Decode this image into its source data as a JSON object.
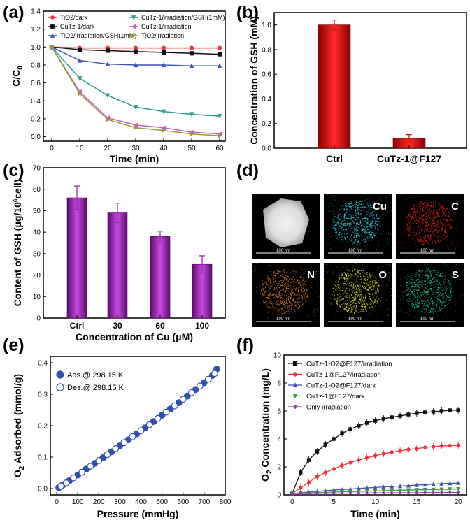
{
  "chart_data": [
    {
      "panel": "(a)",
      "type": "line",
      "xlabel": "Time (min)",
      "ylabel": "C/C0",
      "xlim": [
        -3,
        62
      ],
      "ylim": [
        -0.05,
        1.4
      ],
      "xticks": [
        0,
        10,
        20,
        30,
        40,
        50,
        60
      ],
      "yticks": [
        0.0,
        0.2,
        0.4,
        0.6,
        0.8,
        1.0,
        1.2,
        1.4
      ],
      "ytick_labels": [
        "0.0",
        "0.2",
        "0.4",
        "0.6",
        "0.8",
        "1.0",
        "1.2",
        "1.4"
      ],
      "x": [
        0,
        10,
        20,
        30,
        40,
        50,
        60
      ],
      "series": [
        {
          "name": "TiO2/dark",
          "color": "#e8363a",
          "marker": "circle",
          "values": [
            1.0,
            0.99,
            0.99,
            0.99,
            0.99,
            0.99,
            0.99
          ]
        },
        {
          "name": "CuTz-1/dark",
          "color": "#111111",
          "marker": "square",
          "values": [
            1.0,
            0.97,
            0.96,
            0.95,
            0.94,
            0.93,
            0.92
          ]
        },
        {
          "name": "TiO2/irradiation/GSH(1mM)",
          "color": "#3f51b5",
          "marker": "triangle-up",
          "values": [
            1.0,
            0.85,
            0.81,
            0.8,
            0.8,
            0.79,
            0.79
          ]
        },
        {
          "name": "CuTz-1/irradiation/GSH(1mM)",
          "color": "#2a9d8f",
          "marker": "triangle-down",
          "values": [
            1.0,
            0.65,
            0.46,
            0.33,
            0.28,
            0.25,
            0.23
          ]
        },
        {
          "name": "CuTz-1/irradiation",
          "color": "#c060c0",
          "marker": "triangle-left",
          "values": [
            1.0,
            0.5,
            0.21,
            0.13,
            0.1,
            0.05,
            0.03
          ]
        },
        {
          "name": "TiO2/irradiation",
          "color": "#999933",
          "marker": "triangle-right",
          "values": [
            1.0,
            0.48,
            0.19,
            0.1,
            0.07,
            0.03,
            0.01
          ]
        }
      ]
    },
    {
      "panel": "(b)",
      "type": "bar",
      "ylabel": "Concentration of GSH (mM)",
      "categories": [
        "Ctrl",
        "CuTz-1@F127"
      ],
      "values": [
        1.0,
        0.08
      ],
      "errors": [
        0.04,
        0.03
      ],
      "color": "#e01010",
      "ylim": [
        0,
        1.1
      ],
      "yticks": [
        0.0,
        0.2,
        0.4,
        0.6,
        0.8,
        1.0
      ],
      "ytick_labels": [
        "0.0",
        "0.2",
        "0.4",
        "0.6",
        "0.8",
        "1.0"
      ]
    },
    {
      "panel": "(c)",
      "type": "bar",
      "xlabel": "Concentration of Cu (μM)",
      "ylabel": "Content of GSH (μg/10^6 cell)",
      "ylabel_parts": [
        "Content of GSH (",
        "μ",
        "g/10",
        "6",
        "cell)"
      ],
      "categories": [
        "Ctrl",
        "30",
        "60",
        "100"
      ],
      "values": [
        56,
        49,
        38,
        25
      ],
      "errors": [
        5.5,
        4.5,
        2.5,
        4
      ],
      "color": "#a02ab0",
      "ylim": [
        0,
        70
      ],
      "yticks": [
        0,
        10,
        20,
        30,
        40,
        50,
        60,
        70
      ],
      "ytick_labels": [
        "0",
        "10",
        "20",
        "30",
        "40",
        "50",
        "60",
        "70"
      ]
    },
    {
      "panel": "(e)",
      "type": "scatter",
      "xlabel": "Pressure (mmHg)",
      "ylabel": "O2 Adsorbed (mmol/g)",
      "xlim": [
        -30,
        800
      ],
      "ylim": [
        -0.02,
        0.42
      ],
      "xticks": [
        0,
        100,
        200,
        300,
        400,
        500,
        600,
        700,
        800
      ],
      "yticks": [
        0.0,
        0.1,
        0.2,
        0.3,
        0.4
      ],
      "ytick_labels": [
        "0.0",
        "0.1",
        "0.2",
        "0.3",
        "0.4"
      ],
      "series": [
        {
          "name": "Ads.@ 298.15 K",
          "filled": true,
          "color": "#3050b0",
          "x": [
            10,
            30,
            60,
            100,
            140,
            180,
            220,
            260,
            300,
            340,
            380,
            420,
            460,
            500,
            540,
            580,
            620,
            660,
            700,
            740,
            760
          ],
          "y": [
            0.003,
            0.012,
            0.025,
            0.043,
            0.062,
            0.08,
            0.098,
            0.117,
            0.136,
            0.155,
            0.174,
            0.193,
            0.213,
            0.233,
            0.253,
            0.273,
            0.294,
            0.315,
            0.337,
            0.36,
            0.38
          ]
        },
        {
          "name": "Des.@ 298.15 K",
          "filled": false,
          "color": "#3050b0",
          "x": [
            20,
            45,
            80,
            120,
            160,
            200,
            240,
            280,
            320,
            360,
            400,
            440,
            480,
            520,
            560,
            600,
            640,
            680,
            720,
            750
          ],
          "y": [
            0.008,
            0.018,
            0.034,
            0.052,
            0.071,
            0.089,
            0.108,
            0.127,
            0.146,
            0.165,
            0.184,
            0.203,
            0.223,
            0.243,
            0.263,
            0.284,
            0.305,
            0.326,
            0.348,
            0.366
          ]
        }
      ]
    },
    {
      "panel": "(f)",
      "type": "line",
      "xlabel": "Time (min)",
      "ylabel": "O2 Concentration (mg/L)",
      "xlim": [
        -1,
        21
      ],
      "ylim": [
        0,
        10
      ],
      "xticks": [
        0,
        5,
        10,
        15,
        20
      ],
      "yticks": [
        0,
        2,
        4,
        6,
        8,
        10
      ],
      "x": [
        0,
        1,
        2,
        3,
        4,
        5,
        6,
        7,
        8,
        9,
        10,
        11,
        12,
        13,
        14,
        15,
        16,
        17,
        18,
        19,
        20
      ],
      "series": [
        {
          "name": "CuTz-1-O2@F127/irradiation",
          "color": "#111111",
          "marker": "square",
          "values": [
            0.1,
            1.6,
            2.5,
            3.1,
            3.6,
            4.0,
            4.4,
            4.7,
            4.95,
            5.15,
            5.3,
            5.45,
            5.55,
            5.65,
            5.75,
            5.85,
            5.9,
            5.95,
            6.0,
            6.05,
            6.05
          ]
        },
        {
          "name": "CuTz-1@F127/irradiation",
          "color": "#e8363a",
          "marker": "circle",
          "values": [
            0.1,
            0.5,
            0.9,
            1.3,
            1.6,
            1.85,
            2.1,
            2.3,
            2.5,
            2.65,
            2.8,
            2.95,
            3.05,
            3.15,
            3.25,
            3.3,
            3.4,
            3.45,
            3.5,
            3.52,
            3.55
          ]
        },
        {
          "name": "CuTz-1-O2@F127/dark",
          "color": "#3f51b5",
          "marker": "triangle-up",
          "values": [
            0.1,
            0.15,
            0.2,
            0.25,
            0.3,
            0.35,
            0.38,
            0.42,
            0.46,
            0.5,
            0.53,
            0.57,
            0.6,
            0.63,
            0.66,
            0.7,
            0.73,
            0.76,
            0.8,
            0.82,
            0.85
          ]
        },
        {
          "name": "CuTz-1@F127/dark",
          "color": "#2e9e3e",
          "marker": "triangle-down",
          "values": [
            0.1,
            0.12,
            0.14,
            0.16,
            0.18,
            0.2,
            0.22,
            0.24,
            0.25,
            0.27,
            0.28,
            0.3,
            0.31,
            0.33,
            0.34,
            0.36,
            0.37,
            0.38,
            0.39,
            0.4,
            0.42
          ]
        },
        {
          "name": "Only irradiation",
          "color": "#9b2fae",
          "marker": "diamond",
          "values": [
            0.1,
            0.1,
            0.11,
            0.11,
            0.12,
            0.12,
            0.12,
            0.13,
            0.13,
            0.13,
            0.14,
            0.14,
            0.14,
            0.15,
            0.15,
            0.15,
            0.16,
            0.16,
            0.16,
            0.17,
            0.17
          ]
        }
      ]
    }
  ],
  "panels": {
    "a": {
      "label": "(a)"
    },
    "b": {
      "label": "(b)"
    },
    "c": {
      "label": "(c)"
    },
    "d": {
      "label": "(d)",
      "tiles": [
        {
          "element": "",
          "scale": "100 nm",
          "color": "#ffffff",
          "kind": "haadf"
        },
        {
          "element": "Cu",
          "scale": "100 nm",
          "color": "#2ad4e0",
          "kind": "map"
        },
        {
          "element": "C",
          "scale": "100 nm",
          "color": "#e82020",
          "kind": "map"
        },
        {
          "element": "N",
          "scale": "100 nm",
          "color": "#e07a28",
          "kind": "map"
        },
        {
          "element": "O",
          "scale": "100 nm",
          "color": "#d8d830",
          "kind": "map"
        },
        {
          "element": "S",
          "scale": "100 nm",
          "color": "#20c080",
          "kind": "map"
        }
      ]
    },
    "e": {
      "label": "(e)"
    },
    "f": {
      "label": "(f)"
    }
  }
}
